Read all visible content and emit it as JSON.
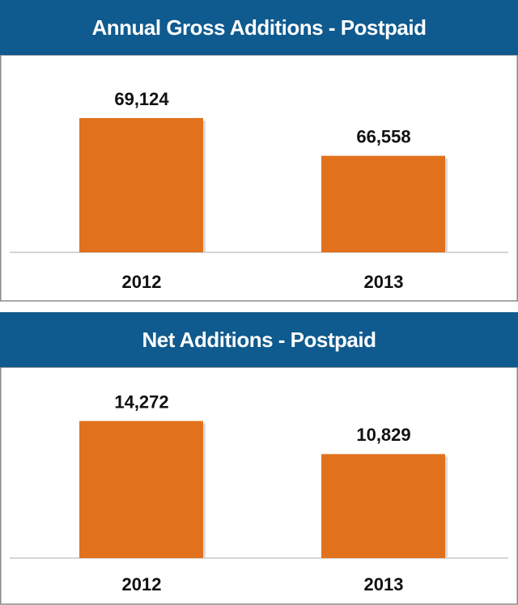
{
  "chart_data": [
    {
      "type": "bar",
      "title": "Annual Gross Additions  - Postpaid",
      "categories": [
        "2012",
        "2013"
      ],
      "values": [
        69124,
        66558
      ],
      "value_labels": [
        "69,124",
        "66,558"
      ],
      "color": "#e2711d",
      "ylim": [
        60000,
        70000
      ]
    },
    {
      "type": "bar",
      "title": "Net Additions - Postpaid",
      "categories": [
        "2012",
        "2013"
      ],
      "values": [
        14272,
        10829
      ],
      "value_labels": [
        "14,272",
        "10,829"
      ],
      "color": "#e2711d",
      "ylim": [
        0,
        16000
      ]
    }
  ]
}
